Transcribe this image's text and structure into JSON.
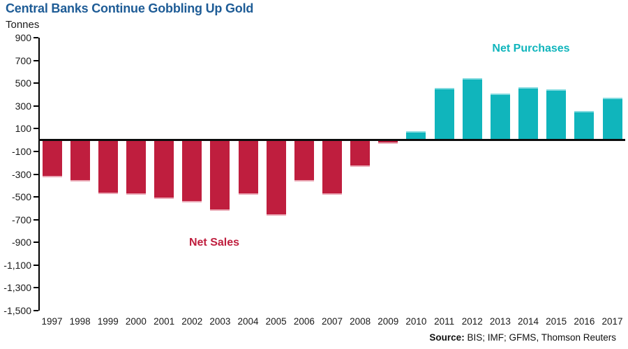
{
  "title": "Central Banks Continue Gobbling Up Gold",
  "unit_label": "Tonnes",
  "annotations": {
    "net_purchases": "Net Purchases",
    "net_sales": "Net Sales"
  },
  "source": {
    "label": "Source:",
    "text": " BIS; IMF; GFMS, Thomson Reuters"
  },
  "colors": {
    "title_blue": "#1E5C96",
    "net_sales_red": "#BF1E3E",
    "net_purchases_teal": "#10B5BC",
    "axis_black": "#000000"
  },
  "chart_data": {
    "type": "bar",
    "title": "Central Banks Continue Gobbling Up Gold",
    "xlabel": "",
    "ylabel": "Tonnes",
    "categories": [
      "1997",
      "1998",
      "1999",
      "2000",
      "2001",
      "2002",
      "2003",
      "2004",
      "2005",
      "2006",
      "2007",
      "2008",
      "2009",
      "2010",
      "2011",
      "2012",
      "2013",
      "2014",
      "2015",
      "2016",
      "2017"
    ],
    "values": [
      -326,
      -363,
      -477,
      -479,
      -520,
      -547,
      -620,
      -479,
      -663,
      -365,
      -484,
      -235,
      -34,
      77,
      457,
      544,
      409,
      466,
      443,
      257,
      371
    ],
    "ylim": [
      -1500,
      900
    ],
    "ytick_values": [
      900,
      700,
      500,
      300,
      100,
      -100,
      -300,
      -500,
      -700,
      -900,
      -1100,
      -1300,
      -1500
    ],
    "ytick_labels": [
      "900",
      "700",
      "500",
      "300",
      "100",
      "-100",
      "-300",
      "-500",
      "-700",
      "-900",
      "-1,100",
      "-1,300",
      "-1,500"
    ],
    "grid": false,
    "legend_position": "none",
    "positive_label": "Net Purchases",
    "negative_label": "Net Sales",
    "positive_color": "#10B5BC",
    "negative_color": "#BF1E3E"
  }
}
